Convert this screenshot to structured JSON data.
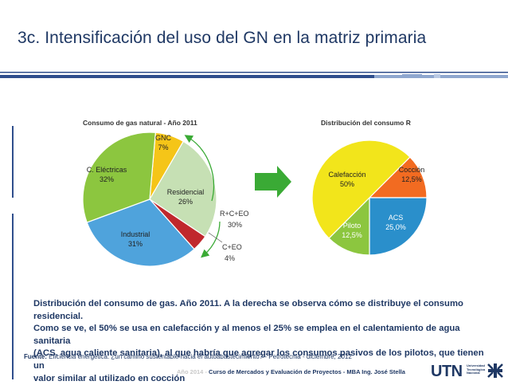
{
  "slide": {
    "title": "3c. Intensificación del uso del GN en la matriz primaria"
  },
  "chart_data": [
    {
      "type": "pie",
      "title": "Consumo de gas natural - Año 2011",
      "slices": [
        {
          "label": "GNC",
          "value": 7,
          "value_label": "7%",
          "color": "#f5c518"
        },
        {
          "label": "Residencial",
          "value": 26,
          "value_label": "26%",
          "color": "#c6e0b4"
        },
        {
          "label": "",
          "value": 4,
          "value_label": "",
          "color": "#c0282d"
        },
        {
          "label": "Industrial",
          "value": 31,
          "value_label": "31%",
          "color": "#4fa3dc"
        },
        {
          "label": "C. Eléctricas",
          "value": 32,
          "value_label": "32%",
          "color": "#8cc63f"
        }
      ],
      "annotations": [
        {
          "label": "R+C+EO",
          "value_label": "30%"
        },
        {
          "label": "C+EO",
          "value_label": "4%"
        }
      ]
    },
    {
      "type": "pie",
      "title": "Distribución del consumo R",
      "slices": [
        {
          "label": "Cocción",
          "value": 12.5,
          "value_label": "12,5%",
          "color": "#f26b21"
        },
        {
          "label": "ACS",
          "value": 25.0,
          "value_label": "25,0%",
          "color": "#2a8fcb"
        },
        {
          "label": "Piloto",
          "value": 12.5,
          "value_label": "12,5%",
          "color": "#8cc63f"
        },
        {
          "label": "Calefacción",
          "value": 50,
          "value_label": "50%",
          "color": "#f2e51b"
        }
      ]
    }
  ],
  "caption": {
    "line1": "Distribución del consumo de gas. Año 2011. A la derecha se observa cómo se distribuye el consumo residencial.",
    "line2": "Como se ve, el 50% se usa en calefacción y al menos el 25% se emplea en el calentamiento de agua sanitaria",
    "line3": "(ACS, agua caliente sanitaria), al que habría que agregar los consumos pasivos de los pilotos, que tienen un",
    "line4": "valor similar al utilizado en cocción"
  },
  "source": {
    "label": "Fuente:",
    "text": "Eficiencia energética: ¿un camino sustentable hacia el autoabastecimiento? - Petrotecnia - diciembre, 2012"
  },
  "footer": {
    "year": "Año 2014 -",
    "text": "Curso de Mercados y Evaluación de Proyectos - MBA Ing. José Stella"
  },
  "logo": {
    "text": "UTN",
    "sub1": "Universidad",
    "sub2": "Tecnológica",
    "sub3": "Nacional"
  },
  "colors": {
    "title": "#1f3864",
    "accent_bar": "#2f4e8c",
    "arrow": "#3aaa35"
  }
}
